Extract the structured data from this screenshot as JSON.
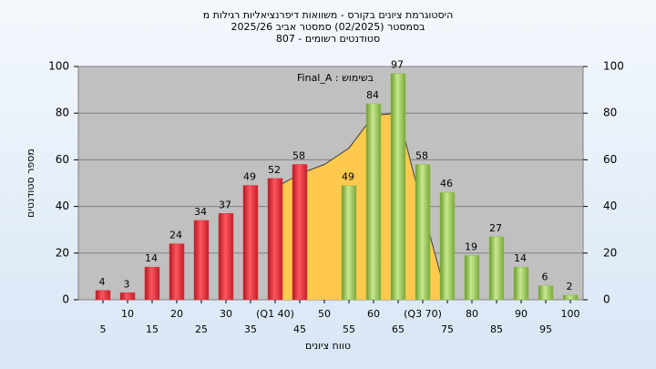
{
  "chart_data": {
    "type": "bar",
    "title": [
      "היסטוגרמת ציונים בקורס - משוואות דיפרנציאליות רגילות מ",
      "בסמסטר  (02/2025)  סמסטר אביב 2025/26",
      "סטודנטים רשומים - 807"
    ],
    "legend_text": "Final_A : בשימוש",
    "x_label": "טווח ציונים",
    "y_label": "מספר סטודנטים",
    "categories": [
      "5",
      "10",
      "15",
      "20",
      "25",
      "30",
      "35",
      "(Q1 40)",
      "45",
      "50",
      "55",
      "60",
      "65",
      "(Q3 70)",
      "75",
      "80",
      "85",
      "90",
      "95",
      "100"
    ],
    "series": [
      {
        "color": "#e8303a",
        "values": [
          4,
          3,
          14,
          24,
          34,
          37,
          49,
          52,
          58,
          null,
          null,
          null,
          null,
          null,
          null,
          null,
          null,
          null,
          null,
          null
        ]
      },
      {
        "color": "#8fc046",
        "values": [
          null,
          null,
          null,
          null,
          null,
          null,
          null,
          null,
          null,
          null,
          49,
          84,
          97,
          58,
          46,
          19,
          27,
          14,
          6,
          2
        ]
      },
      {
        "type": "area",
        "color": "#ffc94d",
        "values": [
          null,
          null,
          null,
          null,
          null,
          null,
          null,
          48,
          54,
          58,
          65,
          79,
          80,
          39,
          0,
          null,
          null,
          null,
          null,
          null
        ]
      }
    ],
    "ylim": [
      0,
      100
    ],
    "yticks": [
      0,
      20,
      40,
      60,
      80,
      100
    ],
    "y2lim": [
      0,
      100
    ],
    "y2ticks": [
      0,
      20,
      40,
      60,
      80,
      100
    ],
    "grid": true
  }
}
